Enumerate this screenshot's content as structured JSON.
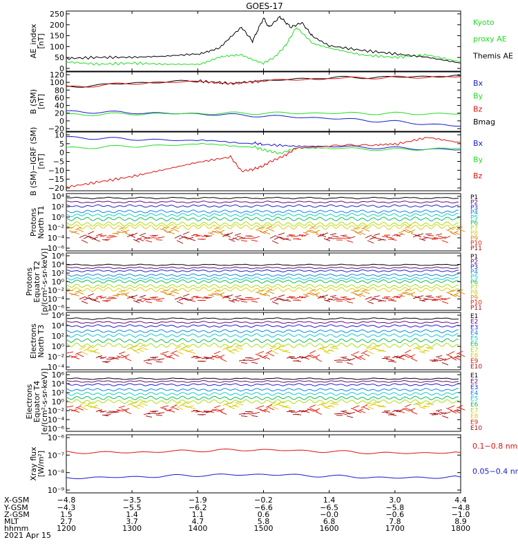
{
  "title": "GOES-17",
  "panels": [
    {
      "id": "ae",
      "ylabel": [
        "AE_index",
        "[nT]"
      ],
      "yticks": [
        "250",
        "200",
        "150",
        "100",
        "50",
        "0"
      ],
      "ylim": [
        0,
        260
      ],
      "legend": [
        {
          "text": "Kyoto",
          "color": "#22dd22"
        },
        {
          "text": "proxy AE",
          "color": "#22dd22"
        },
        {
          "text": "Themis AE",
          "color": "#000000"
        }
      ]
    },
    {
      "id": "b_sm",
      "ylabel": [
        "B (SM)",
        "[nT]"
      ],
      "yticks": [
        "120",
        "100",
        "80",
        "60",
        "40",
        "20",
        "0",
        "−20"
      ],
      "ylim": [
        -25,
        125
      ],
      "legend": [
        {
          "text": "Bx",
          "color": "#1a1acc"
        },
        {
          "text": "By",
          "color": "#22dd22"
        },
        {
          "text": "Bz",
          "color": "#dd1111"
        },
        {
          "text": "Bmag",
          "color": "#000000"
        }
      ]
    },
    {
      "id": "b_igrf",
      "ylabel": [
        "B (SM)−IGRF (SM)",
        "[nT]"
      ],
      "yticks": [
        "10",
        "5",
        "0",
        "−5",
        "−10",
        "−15",
        "−20"
      ],
      "ylim": [
        -21,
        12
      ],
      "legend": [
        {
          "text": "Bx",
          "color": "#1a1acc"
        },
        {
          "text": "By",
          "color": "#22dd22"
        },
        {
          "text": "Bz",
          "color": "#dd1111"
        }
      ]
    },
    {
      "id": "protons_t1",
      "ylabel": [
        "Protons",
        "North T1"
      ],
      "yticks": [
        "10⁴",
        "10²",
        "10⁰",
        "10⁻²",
        "10⁻⁴",
        "10⁻⁶"
      ],
      "ylim": [
        -7,
        4.5
      ],
      "legend": [
        {
          "text": "P1",
          "color": "#000000"
        },
        {
          "text": "P2",
          "color": "#6a0a7a"
        },
        {
          "text": "P3",
          "color": "#2222cc"
        },
        {
          "text": "P4",
          "color": "#1188dd"
        },
        {
          "text": "P5",
          "color": "#11cccc"
        },
        {
          "text": "P6",
          "color": "#11bb55"
        },
        {
          "text": "P7",
          "color": "#aadd11"
        },
        {
          "text": "P8",
          "color": "#ddcc11"
        },
        {
          "text": "P9",
          "color": "#dd8811"
        },
        {
          "text": "P10",
          "color": "#dd2211"
        },
        {
          "text": "P11",
          "color": "#aa1111"
        }
      ]
    },
    {
      "id": "protons_t2",
      "ylabel": [
        "Protons",
        "Equator T2",
        "[p/(cm²-s-sr-keV)]"
      ],
      "yticks": [
        "10⁶",
        "10⁴",
        "10²",
        "10⁰",
        "10⁻²",
        "10⁻⁴",
        "10⁻⁶"
      ],
      "ylim": [
        -7,
        6.5
      ],
      "legend": [
        {
          "text": "P1",
          "color": "#000000"
        },
        {
          "text": "P2",
          "color": "#6a0a7a"
        },
        {
          "text": "P3",
          "color": "#2222cc"
        },
        {
          "text": "P4",
          "color": "#1188dd"
        },
        {
          "text": "P5",
          "color": "#11cccc"
        },
        {
          "text": "P6",
          "color": "#11bb55"
        },
        {
          "text": "P7",
          "color": "#aadd11"
        },
        {
          "text": "P8",
          "color": "#ddcc11"
        },
        {
          "text": "P9",
          "color": "#dd8811"
        },
        {
          "text": "P10",
          "color": "#dd2211"
        },
        {
          "text": "P11",
          "color": "#aa1111"
        }
      ]
    },
    {
      "id": "electrons_t3",
      "ylabel": [
        "Electrons",
        "North T3"
      ],
      "yticks": [
        "10⁶",
        "10⁴",
        "10²",
        "10⁰",
        "10⁻²",
        "10⁻⁴"
      ],
      "ylim": [
        -4.5,
        6.5
      ],
      "legend": [
        {
          "text": "E1",
          "color": "#000000"
        },
        {
          "text": "E2",
          "color": "#6a0a7a"
        },
        {
          "text": "E3",
          "color": "#2222cc"
        },
        {
          "text": "E4",
          "color": "#1188dd"
        },
        {
          "text": "E5",
          "color": "#11cccc"
        },
        {
          "text": "E6",
          "color": "#11bb55"
        },
        {
          "text": "E7",
          "color": "#aadd11"
        },
        {
          "text": "E8",
          "color": "#ddcc11"
        },
        {
          "text": "E9",
          "color": "#dd2211"
        },
        {
          "text": "E10",
          "color": "#aa1111"
        }
      ]
    },
    {
      "id": "electrons_t4",
      "ylabel": [
        "Electrons",
        "Equator T4",
        "[e/(cm²-s-sr-keV)]"
      ],
      "yticks": [
        "10⁶",
        "10⁴",
        "10²",
        "10⁰",
        "10⁻²",
        "10⁻⁴",
        "10⁻⁶"
      ],
      "ylim": [
        -6.5,
        6.5
      ],
      "legend": [
        {
          "text": "E1",
          "color": "#000000"
        },
        {
          "text": "E2",
          "color": "#6a0a7a"
        },
        {
          "text": "E3",
          "color": "#2222cc"
        },
        {
          "text": "E4",
          "color": "#1188dd"
        },
        {
          "text": "E5",
          "color": "#11cccc"
        },
        {
          "text": "E6",
          "color": "#11bb55"
        },
        {
          "text": "E7",
          "color": "#aadd11"
        },
        {
          "text": "E8",
          "color": "#ddcc11"
        },
        {
          "text": "E9",
          "color": "#dd2211"
        },
        {
          "text": "E10",
          "color": "#aa1111"
        }
      ]
    },
    {
      "id": "xray",
      "ylabel": [
        "Xray flux",
        "[W/m²]"
      ],
      "yticks": [
        "10⁻⁶",
        "10⁻⁷",
        "10⁻⁸",
        "10⁻⁹"
      ],
      "ylim": [
        -9.2,
        -5.9
      ],
      "legend": [
        {
          "text": "0.1−0.8 nm",
          "color": "#dd1111"
        },
        {
          "text": "0.05−0.4 nm",
          "color": "#1a1acc"
        }
      ]
    }
  ],
  "bottom_axis": {
    "row_labels": [
      "X-GSM",
      "Y-GSM",
      "Z-GSM",
      "MLT",
      "hhmm",
      "2021 Apr 15"
    ],
    "columns": [
      {
        "x": "−4.8",
        "y": "−4.3",
        "z": "1.5",
        "mlt": "2.7",
        "hhmm": "1200"
      },
      {
        "x": "−3.5",
        "y": "−5.5",
        "z": "1.4",
        "mlt": "3.7",
        "hhmm": "1300"
      },
      {
        "x": "−1.9",
        "y": "−6.2",
        "z": "1.1",
        "mlt": "4.7",
        "hhmm": "1400"
      },
      {
        "x": "−0.2",
        "y": "−6.6",
        "z": "0.6",
        "mlt": "5.8",
        "hhmm": "1500"
      },
      {
        "x": "1.4",
        "y": "−6.5",
        "z": "−0.0",
        "mlt": "6.8",
        "hhmm": "1600"
      },
      {
        "x": "3.0",
        "y": "−5.8",
        "z": "−0.6",
        "mlt": "7.8",
        "hhmm": "1700"
      },
      {
        "x": "4.4",
        "y": "−4.8",
        "z": "−1.0",
        "mlt": "8.9",
        "hhmm": "1800"
      }
    ]
  },
  "chart_data": {
    "type": "line",
    "title": "GOES-17",
    "x_range_hhmm": [
      "1200",
      "1800"
    ],
    "series": [
      {
        "panel": "ae",
        "name": "Kyoto proxy AE",
        "color": "#22dd22",
        "x": [
          1200,
          1230,
          1300,
          1330,
          1400,
          1420,
          1440,
          1500,
          1510,
          1520,
          1530,
          1545,
          1600,
          1630,
          1700,
          1730,
          1800
        ],
        "y": [
          40,
          30,
          35,
          30,
          30,
          60,
          70,
          35,
          60,
          110,
          190,
          120,
          100,
          70,
          60,
          70,
          40
        ]
      },
      {
        "panel": "ae",
        "name": "Themis AE",
        "color": "#000000",
        "x": [
          1200,
          1230,
          1300,
          1330,
          1400,
          1420,
          1440,
          1450,
          1500,
          1505,
          1515,
          1525,
          1535,
          1545,
          1600,
          1630,
          1700,
          1730,
          1800
        ],
        "y": [
          55,
          60,
          60,
          65,
          75,
          100,
          190,
          130,
          230,
          190,
          235,
          190,
          210,
          150,
          110,
          90,
          75,
          60,
          35
        ]
      },
      {
        "panel": "b_sm",
        "name": "Bmag",
        "color": "#000000",
        "x": [
          1200,
          1300,
          1400,
          1430,
          1500,
          1600,
          1700,
          1800
        ],
        "y": [
          87,
          97,
          102,
          96,
          103,
          110,
          112,
          115
        ]
      },
      {
        "panel": "b_sm",
        "name": "Bz",
        "color": "#dd1111",
        "x": [
          1200,
          1300,
          1400,
          1430,
          1500,
          1600,
          1700,
          1800
        ],
        "y": [
          86,
          96,
          101,
          95,
          102,
          109,
          111,
          113
        ]
      },
      {
        "panel": "b_sm",
        "name": "Bx",
        "color": "#1a1acc",
        "x": [
          1200,
          1300,
          1400,
          1500,
          1600,
          1700,
          1800
        ],
        "y": [
          25,
          22,
          19,
          14,
          8,
          -1,
          -12
        ]
      },
      {
        "panel": "b_sm",
        "name": "By",
        "color": "#22dd22",
        "x": [
          1200,
          1300,
          1400,
          1500,
          1600,
          1700,
          1800
        ],
        "y": [
          17,
          19,
          20,
          21,
          21,
          20,
          19
        ]
      },
      {
        "panel": "b_igrf",
        "name": "Bx",
        "color": "#1a1acc",
        "x": [
          1200,
          1300,
          1400,
          1450,
          1500,
          1530,
          1600,
          1700,
          1800
        ],
        "y": [
          9,
          8,
          7,
          6,
          5,
          4,
          4,
          3,
          2
        ]
      },
      {
        "panel": "b_igrf",
        "name": "By",
        "color": "#22dd22",
        "x": [
          1200,
          1300,
          1400,
          1450,
          1500,
          1515,
          1530,
          1600,
          1700,
          1800
        ],
        "y": [
          3,
          4,
          5,
          4,
          2,
          0,
          3,
          3,
          2,
          3
        ]
      },
      {
        "panel": "b_igrf",
        "name": "Bz",
        "color": "#dd1111",
        "x": [
          1200,
          1230,
          1300,
          1330,
          1400,
          1430,
          1440,
          1450,
          1500,
          1505,
          1520,
          1530,
          1600,
          1640,
          1700,
          1730,
          1800
        ],
        "y": [
          -19,
          -16,
          -13,
          -9,
          -5,
          -2,
          -10,
          -9,
          -7,
          -5,
          -1,
          3,
          4,
          5,
          5,
          9,
          6
        ]
      },
      {
        "panel": "xray",
        "name": "0.1−0.8 nm",
        "color": "#dd1111",
        "x": [
          1200,
          1300,
          1400,
          1500,
          1600,
          1700,
          1800
        ],
        "y": [
          -6.9,
          -6.9,
          -6.8,
          -6.75,
          -6.85,
          -6.95,
          -6.9
        ]
      },
      {
        "panel": "xray",
        "name": "0.05−0.4 nm",
        "color": "#1a1acc",
        "x": [
          1200,
          1300,
          1400,
          1500,
          1600,
          1700,
          1800
        ],
        "y": [
          -8.35,
          -8.3,
          -8.2,
          -8.15,
          -8.25,
          -8.35,
          -8.3
        ]
      }
    ],
    "particle_channels_log10": {
      "protons_t1": [
        3.6,
        2.8,
        2.0,
        0.9,
        0.2,
        -0.6,
        -1.6,
        -2.2,
        -3.0,
        -4.3,
        -4.3
      ],
      "protons_t2": [
        3.7,
        3.0,
        2.3,
        1.3,
        0.5,
        -0.2,
        -1.3,
        -2.1,
        -3.0,
        -4.3,
        -4.3
      ],
      "electrons_t3": [
        5.3,
        4.6,
        3.9,
        2.9,
        2.1,
        1.1,
        0.2,
        -0.6,
        -1.8,
        -2.5
      ],
      "electrons_t4": [
        5.0,
        4.4,
        3.7,
        2.6,
        1.7,
        0.8,
        0.0,
        -0.8,
        -1.7,
        -2.5
      ]
    }
  }
}
